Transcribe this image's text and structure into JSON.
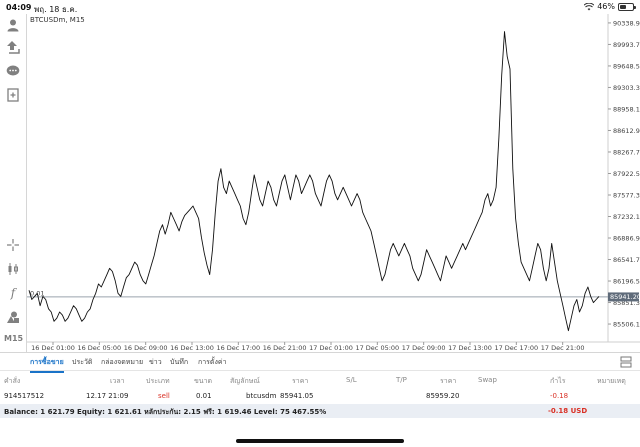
{
  "status": {
    "time": "04:09",
    "date": "พฤ. 18 ธ.ค.",
    "battery": "46%",
    "battery_level": 0.46
  },
  "chart": {
    "symbol_label": "BTCUSDm, M15",
    "price_line_value": "85941.20",
    "price_line_left_label": "0.01",
    "timeframe": "M15"
  },
  "chart_data": {
    "type": "line",
    "ylim": [
      85250,
      90450
    ],
    "y_ticks": [
      "90338.90",
      "89993.70",
      "89648.50",
      "89303.30",
      "88958.10",
      "88612.90",
      "88267.70",
      "87922.50",
      "87577.30",
      "87232.10",
      "86886.90",
      "86541.70",
      "86196.50",
      "85851.30",
      "85506.10"
    ],
    "x_ticks": [
      "16 Dec 01:00",
      "16 Dec 05:00",
      "16 Dec 09:00",
      "16 Dec 13:00",
      "16 Dec 17:00",
      "16 Dec 21:00",
      "17 Dec 01:00",
      "17 Dec 05:00",
      "17 Dec 09:00",
      "17 Dec 13:00",
      "17 Dec 17:00",
      "17 Dec 21:00"
    ],
    "series": [
      {
        "values": [
          86050,
          85900,
          85950,
          86000,
          85800,
          85950,
          85900,
          85750,
          85700,
          85550,
          85600,
          85700,
          85650,
          85550,
          85600,
          85700,
          85800,
          85750,
          85650,
          85550,
          85600,
          85700,
          85750,
          85900,
          86000,
          86150,
          86100,
          86200,
          86300,
          86400,
          86350,
          86200,
          86000,
          85950,
          86100,
          86250,
          86300,
          86400,
          86500,
          86450,
          86300,
          86200,
          86150,
          86300,
          86450,
          86600,
          86800,
          87000,
          87100,
          86950,
          87100,
          87300,
          87200,
          87100,
          87000,
          87150,
          87250,
          87300,
          87350,
          87400,
          87300,
          87200,
          86900,
          86650,
          86450,
          86300,
          86700,
          87300,
          87800,
          88000,
          87700,
          87600,
          87800,
          87700,
          87600,
          87500,
          87400,
          87200,
          87100,
          87300,
          87600,
          87900,
          87700,
          87500,
          87400,
          87600,
          87800,
          87700,
          87500,
          87400,
          87600,
          87800,
          87900,
          87700,
          87500,
          87700,
          87900,
          87800,
          87600,
          87700,
          87800,
          87900,
          87800,
          87600,
          87500,
          87400,
          87600,
          87800,
          87900,
          87800,
          87600,
          87500,
          87600,
          87700,
          87600,
          87500,
          87400,
          87500,
          87600,
          87500,
          87300,
          87200,
          87100,
          87000,
          86800,
          86600,
          86400,
          86200,
          86300,
          86500,
          86700,
          86800,
          86700,
          86600,
          86700,
          86800,
          86700,
          86600,
          86400,
          86300,
          86200,
          86300,
          86500,
          86700,
          86600,
          86500,
          86400,
          86300,
          86200,
          86400,
          86600,
          86500,
          86400,
          86500,
          86600,
          86700,
          86800,
          86700,
          86800,
          86900,
          87000,
          87100,
          87200,
          87300,
          87500,
          87600,
          87400,
          87500,
          87700,
          88500,
          89500,
          90200,
          89800,
          89600,
          88000,
          87200,
          86800,
          86500,
          86400,
          86300,
          86200,
          86400,
          86600,
          86800,
          86700,
          86400,
          86200,
          86400,
          86800,
          86500,
          86200,
          86000,
          85800,
          85600,
          85400,
          85600,
          85800,
          85900,
          85700,
          85800,
          86000,
          86100,
          85950,
          85850,
          85900,
          85950
        ]
      }
    ]
  },
  "tabs": [
    "การซื้อขาย",
    "ประวัติ",
    "กล่องจดหมาย",
    "ข่าว",
    "บันทึก",
    "การตั้งค่า"
  ],
  "table": {
    "headers": [
      "คำสั่ง",
      "เวลา",
      "ประเภท",
      "ขนาด",
      "สัญลักษณ์",
      "ราคา",
      "S/L",
      "T/P",
      "ราคา",
      "Swap",
      "กำไร",
      "หมายเหตุ"
    ],
    "row": {
      "order": "914517512",
      "time": "12.17 21:09",
      "type": "sell",
      "size": "0.01",
      "symbol": "btcusdm",
      "open_price": "85941.05",
      "current_price": "85959.20",
      "profit": "-0.18"
    }
  },
  "balance": {
    "text": "Balance: 1 621.79 Equity: 1 621.61 หลักประกัน: 2.15 ฟรี: 1 619.46 Level: 75 467.55%",
    "pl": "-0.18  USD"
  },
  "colors": {
    "accent": "#1a73c8",
    "loss": "#d93025",
    "price_line_bg": "#5f6b7a",
    "balance_bg": "#eaeef4"
  }
}
